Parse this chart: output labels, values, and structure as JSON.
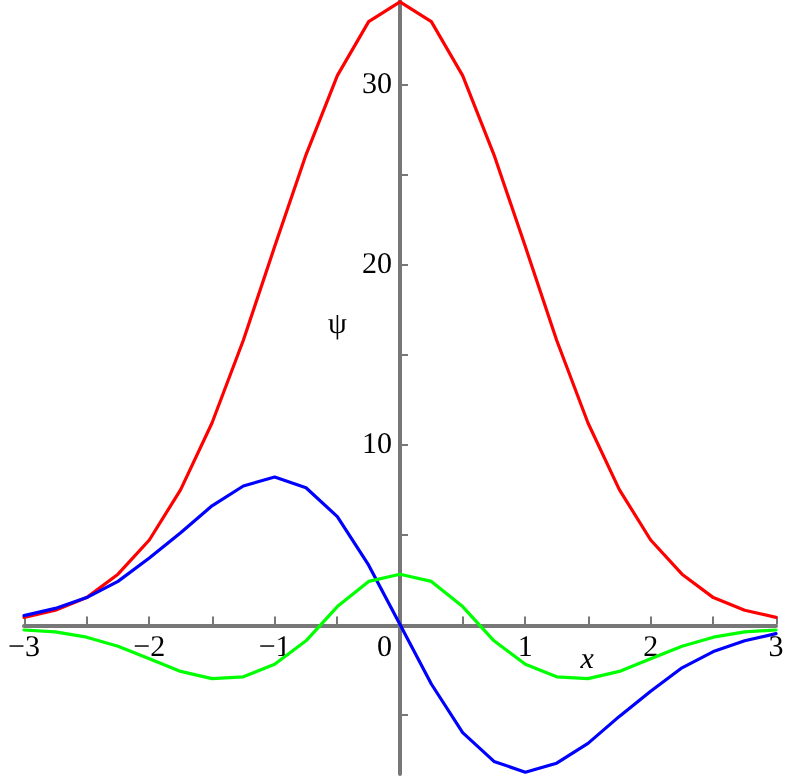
{
  "chart_data": {
    "type": "line",
    "xlabel": "x",
    "ylabel": "ψ",
    "x": [
      -3,
      -2.75,
      -2.5,
      -2.25,
      -2,
      -1.75,
      -1.5,
      -1.25,
      -1,
      -0.75,
      -0.5,
      -0.25,
      0,
      0.25,
      0.5,
      0.75,
      1,
      1.25,
      1.5,
      1.75,
      2,
      2.25,
      2.5,
      2.75,
      3
    ],
    "series": [
      {
        "color": "#ff0000",
        "values": [
          0.4,
          0.8,
          1.5,
          2.8,
          4.7,
          7.5,
          11.2,
          15.8,
          21.0,
          26.1,
          30.5,
          33.5,
          34.6,
          33.5,
          30.5,
          26.1,
          21.0,
          15.8,
          11.2,
          7.5,
          4.7,
          2.8,
          1.5,
          0.8,
          0.4
        ]
      },
      {
        "color": "#0000ff",
        "values": [
          0.5,
          0.9,
          1.5,
          2.4,
          3.7,
          5.1,
          6.6,
          7.7,
          8.2,
          7.6,
          6.0,
          3.3,
          0,
          -3.3,
          -6.0,
          -7.6,
          -8.2,
          -7.7,
          -6.6,
          -5.1,
          -3.7,
          -2.4,
          -1.5,
          -0.9,
          -0.5
        ]
      },
      {
        "color": "#00ff00",
        "values": [
          -0.3,
          -0.4,
          -0.7,
          -1.2,
          -1.9,
          -2.6,
          -3.0,
          -2.9,
          -2.2,
          -0.9,
          1.0,
          2.4,
          2.8,
          2.4,
          1.0,
          -0.9,
          -2.2,
          -2.9,
          -3.0,
          -2.6,
          -1.9,
          -1.2,
          -0.7,
          -0.4,
          -0.3
        ]
      }
    ],
    "xlim": [
      -3,
      3
    ],
    "ylim": [
      -8.3,
      34.7
    ],
    "xticks": [
      -3,
      {
        "value": -2.5,
        "label": null
      },
      -2,
      {
        "value": -1.5,
        "label": null
      },
      -1,
      {
        "value": -0.5,
        "label": null
      },
      0,
      {
        "value": 0.5,
        "label": null
      },
      1,
      {
        "value": 1.5,
        "label": null
      },
      2,
      {
        "value": 2.5,
        "label": null
      },
      3
    ],
    "yticks": [
      {
        "value": -5,
        "label": null
      },
      {
        "value": 5,
        "label": null
      },
      10,
      {
        "value": 15,
        "label": null
      },
      20,
      {
        "value": 25,
        "label": null
      },
      30
    ],
    "grid": false,
    "marker": "none",
    "line_style": "solid"
  }
}
